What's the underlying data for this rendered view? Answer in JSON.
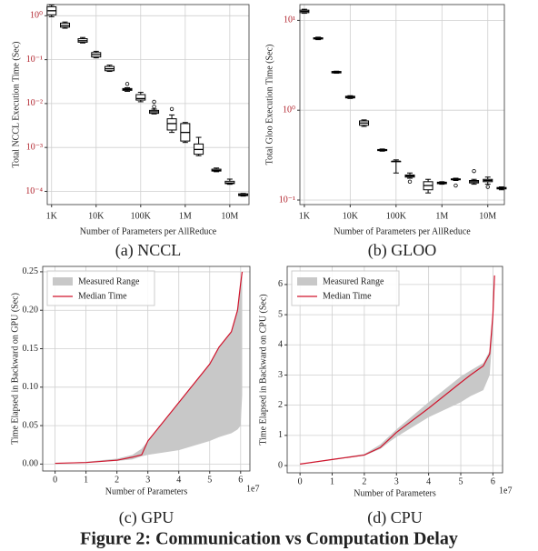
{
  "chart_data": [
    {
      "type": "box",
      "caption": "(a) NCCL",
      "xlabel": "Number of Parameters per AllReduce",
      "ylabel": "Total NCCL Execution Time (Sec)",
      "xscale": "log",
      "yscale": "log",
      "grid": true,
      "color": "#000000",
      "x": [
        1000,
        2000,
        5000,
        10000,
        20000,
        50000,
        100000,
        200000,
        500000,
        1000000,
        2000000,
        5000000,
        10000000,
        20000000
      ],
      "boxes": {
        "whislo": [
          0.95,
          0.52,
          0.24,
          0.11,
          0.054,
          0.019,
          0.011,
          0.0058,
          0.0022,
          0.0013,
          0.00065,
          0.00028,
          0.000145,
          7.8e-05
        ],
        "q1": [
          1.05,
          0.55,
          0.25,
          0.115,
          0.056,
          0.02,
          0.012,
          0.006,
          0.0025,
          0.0014,
          0.0007,
          0.00029,
          0.00015,
          8e-05
        ],
        "med": [
          1.3,
          0.6,
          0.27,
          0.13,
          0.062,
          0.021,
          0.013,
          0.0065,
          0.0035,
          0.0022,
          0.0009,
          0.0003,
          0.000155,
          8.3e-05
        ],
        "q3": [
          1.6,
          0.68,
          0.3,
          0.145,
          0.07,
          0.022,
          0.016,
          0.007,
          0.0045,
          0.0035,
          0.0012,
          0.00032,
          0.00017,
          8.8e-05
        ],
        "whishi": [
          1.75,
          0.72,
          0.32,
          0.155,
          0.075,
          0.023,
          0.018,
          0.0075,
          0.0055,
          0.0037,
          0.0017,
          0.00034,
          0.00019,
          9e-05
        ],
        "fliers": [
          [],
          [],
          [],
          [],
          [],
          [
            0.028
          ],
          [],
          [
            0.0085,
            0.011
          ],
          [
            0.0075
          ],
          [],
          [],
          [],
          [],
          []
        ]
      },
      "xlim": [
        800,
        27000000
      ],
      "xticks": [
        {
          "value": 1000,
          "label": "1K"
        },
        {
          "value": 10000,
          "label": "10K"
        },
        {
          "value": 100000,
          "label": "100K"
        },
        {
          "value": 1000000,
          "label": "1M"
        },
        {
          "value": 10000000,
          "label": "10M"
        }
      ],
      "ylim": [
        5e-05,
        1.8
      ],
      "yticks": [
        {
          "value": 1,
          "label": "10⁰"
        },
        {
          "value": 0.1,
          "label": "10⁻¹"
        },
        {
          "value": 0.01,
          "label": "10⁻²"
        },
        {
          "value": 0.001,
          "label": "10⁻³"
        },
        {
          "value": 0.0001,
          "label": "10⁻⁴"
        }
      ]
    },
    {
      "type": "box",
      "caption": "(b) GLOO",
      "xlabel": "Number of Parameters per AllReduce",
      "ylabel": "Total Gloo Execution Time (Sec)",
      "xscale": "log",
      "yscale": "log",
      "grid": true,
      "color": "#000000",
      "x": [
        1000,
        2000,
        5000,
        10000,
        20000,
        50000,
        100000,
        200000,
        500000,
        1000000,
        2000000,
        5000000,
        10000000,
        20000000
      ],
      "boxes": {
        "whislo": [
          12,
          6.1,
          2.58,
          1.35,
          0.66,
          0.35,
          0.2,
          0.175,
          0.12,
          0.15,
          0.165,
          0.15,
          0.15,
          0.13
        ],
        "q1": [
          12.2,
          6.2,
          2.6,
          1.37,
          0.68,
          0.355,
          0.27,
          0.18,
          0.13,
          0.152,
          0.168,
          0.155,
          0.16,
          0.133
        ],
        "med": [
          12.6,
          6.3,
          2.65,
          1.4,
          0.72,
          0.36,
          0.27,
          0.185,
          0.145,
          0.155,
          0.17,
          0.16,
          0.165,
          0.135
        ],
        "q3": [
          13,
          6.4,
          2.7,
          1.43,
          0.76,
          0.365,
          0.27,
          0.19,
          0.16,
          0.158,
          0.172,
          0.165,
          0.17,
          0.138
        ],
        "whishi": [
          13.3,
          6.5,
          2.72,
          1.45,
          0.78,
          0.37,
          0.28,
          0.2,
          0.17,
          0.16,
          0.175,
          0.17,
          0.18,
          0.14
        ],
        "fliers": [
          [],
          [],
          [],
          [],
          [],
          [],
          [],
          [
            0.16
          ],
          [],
          [],
          [
            0.145
          ],
          [
            0.21
          ],
          [
            0.14
          ],
          []
        ]
      },
      "xlim": [
        800,
        23000000
      ],
      "xticks": [
        {
          "value": 1000,
          "label": "1K"
        },
        {
          "value": 10000,
          "label": "10K"
        },
        {
          "value": 100000,
          "label": "100K"
        },
        {
          "value": 1000000,
          "label": "1M"
        },
        {
          "value": 10000000,
          "label": "10M"
        }
      ],
      "ylim": [
        0.089,
        15
      ],
      "yticks": [
        {
          "value": 10,
          "label": "10¹"
        },
        {
          "value": 1,
          "label": "10⁰"
        },
        {
          "value": 0.1,
          "label": "10⁻¹"
        }
      ]
    },
    {
      "type": "range-line",
      "caption": "(c) GPU",
      "xlabel": "Number of Parameters",
      "ylabel": "Time Elapsed in Backward on GPU (Sec)",
      "x_offset_label": "1e7",
      "grid": true,
      "legend": "upper-left",
      "x": [
        0,
        1,
        2,
        2.5,
        2.8,
        3,
        4,
        5,
        5.3,
        5.7,
        5.9,
        6,
        6.05
      ],
      "range": {
        "name": "Measured Range",
        "color": "#c8c8c8",
        "lower": [
          0.001,
          0.002,
          0.004,
          0.006,
          0.01,
          0.012,
          0.018,
          0.03,
          0.035,
          0.04,
          0.045,
          0.05,
          0.09
        ],
        "upper": [
          0.001,
          0.003,
          0.007,
          0.012,
          0.02,
          0.03,
          0.08,
          0.13,
          0.152,
          0.172,
          0.2,
          0.235,
          0.25
        ]
      },
      "series": [
        {
          "name": "Median Time",
          "color": "#d0142c",
          "values": [
            0.001,
            0.002,
            0.005,
            0.009,
            0.012,
            0.03,
            0.08,
            0.13,
            0.152,
            0.172,
            0.2,
            0.235,
            0.25
          ]
        }
      ],
      "xlim": [
        -0.4,
        6.3
      ],
      "xticks": [
        0,
        1,
        2,
        3,
        4,
        5,
        6
      ],
      "ylim": [
        -0.009,
        0.257
      ],
      "yticks": [
        {
          "value": 0,
          "label": "0.00"
        },
        {
          "value": 0.05,
          "label": "0.05"
        },
        {
          "value": 0.1,
          "label": "0.10"
        },
        {
          "value": 0.15,
          "label": "0.15"
        },
        {
          "value": 0.2,
          "label": "0.20"
        },
        {
          "value": 0.25,
          "label": "0.25"
        }
      ]
    },
    {
      "type": "range-line",
      "caption": "(d) CPU",
      "xlabel": "Number of Parameters",
      "ylabel": "Time Elapsed in Backward on CPU (Sec)",
      "x_offset_label": "1e7",
      "grid": true,
      "legend": "upper-left",
      "x": [
        0,
        1,
        2,
        2.5,
        2.8,
        3,
        4,
        5,
        5.3,
        5.7,
        5.9,
        6,
        6.05
      ],
      "range": {
        "name": "Measured Range",
        "color": "#c8c8c8",
        "lower": [
          0.03,
          0.18,
          0.33,
          0.55,
          0.8,
          0.95,
          1.6,
          2.1,
          2.3,
          2.5,
          3.0,
          4.5,
          6.0
        ],
        "upper": [
          0.05,
          0.22,
          0.38,
          0.7,
          1.0,
          1.2,
          2.1,
          2.95,
          3.15,
          3.4,
          3.8,
          5,
          6.3
        ]
      },
      "series": [
        {
          "name": "Median Time",
          "color": "#d0142c",
          "values": [
            0.05,
            0.2,
            0.35,
            0.6,
            0.9,
            1.1,
            1.9,
            2.75,
            3.0,
            3.3,
            3.7,
            5,
            6.3
          ]
        }
      ],
      "xlim": [
        -0.4,
        6.3
      ],
      "xticks": [
        0,
        1,
        2,
        3,
        4,
        5,
        6
      ],
      "ylim": [
        -0.24,
        6.6
      ],
      "yticks": [
        0,
        1,
        2,
        3,
        4,
        5,
        6
      ]
    }
  ],
  "figure_caption": "Figure 2: Communication vs Computation Delay"
}
